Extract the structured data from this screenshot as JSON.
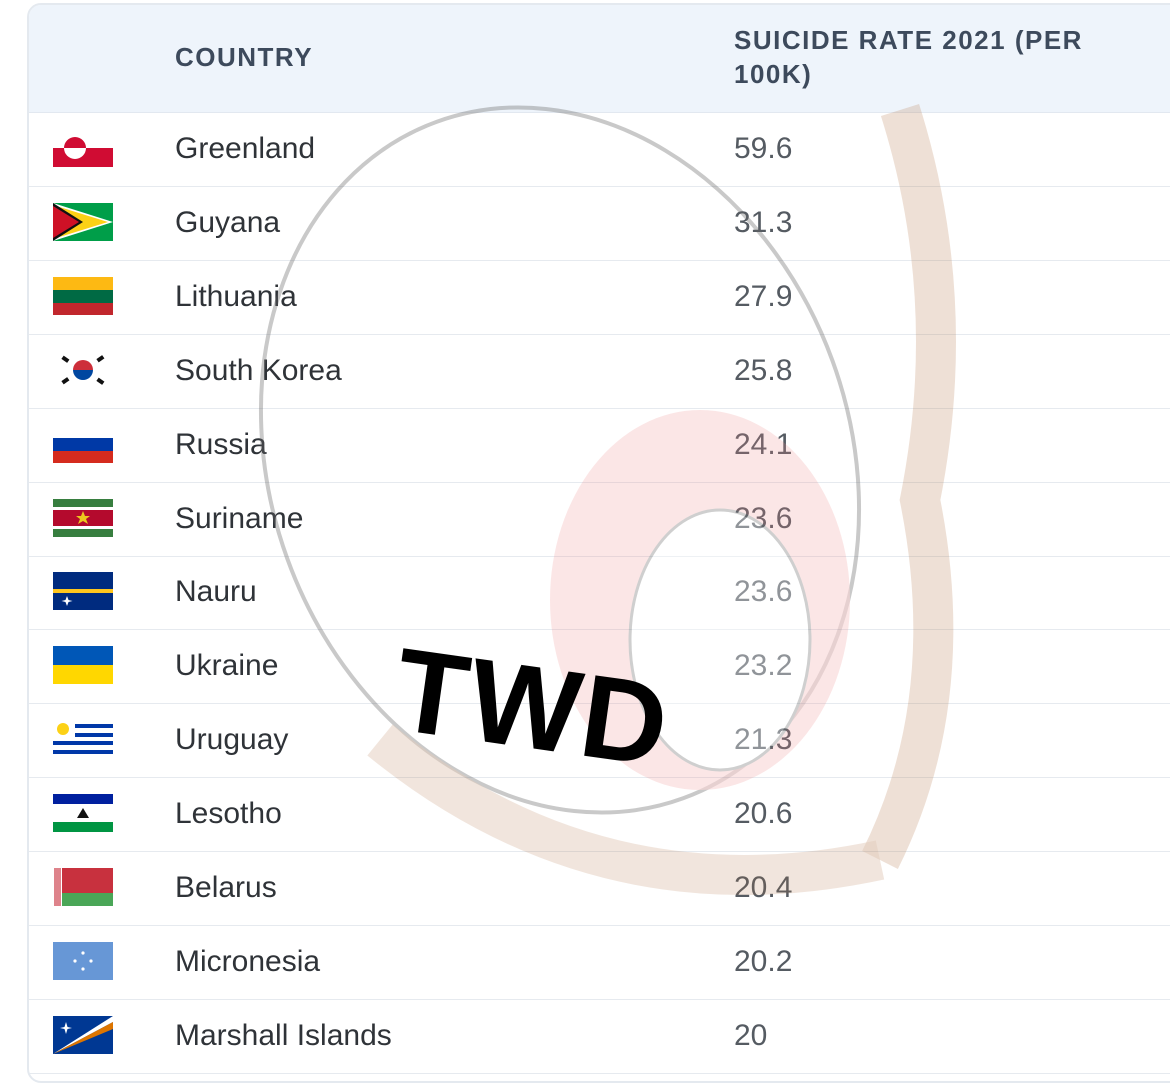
{
  "table": {
    "header": [
      "COUNTRY",
      "SUICIDE RATE 2021 (PER 100K)"
    ],
    "rows": [
      [
        "Greenland",
        59.6
      ],
      [
        "Guyana",
        31.3
      ],
      [
        "Lithuania",
        27.9
      ],
      [
        "South Korea",
        25.8
      ],
      [
        "Russia",
        24.1
      ],
      [
        "Suriname",
        23.6
      ],
      [
        "Nauru",
        23.6
      ],
      [
        "Ukraine",
        23.2
      ],
      [
        "Uruguay",
        21.3
      ],
      [
        "Lesotho",
        20.6
      ],
      [
        "Belarus",
        20.4
      ],
      [
        "Micronesia",
        20.2
      ],
      [
        "Marshall Islands",
        20
      ]
    ]
  },
  "watermark": "TWD"
}
